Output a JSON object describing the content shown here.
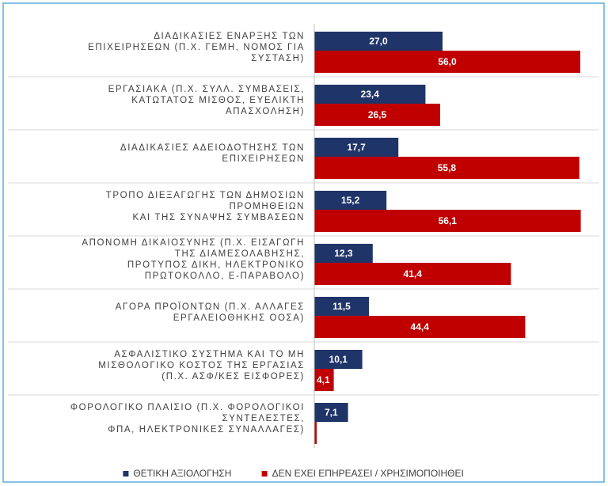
{
  "chart_data": {
    "type": "barh",
    "categories": [
      "ΔΙΑΔΙΚΑΣΙΕΣ ΕΝΑΡΞΗΣ ΤΩΝ\nΕΠΙΧΕΙΡΗΣΕΩΝ (Π.Χ. ΓΕΜΗ, ΝΟΜΟΣ ΓΙΑ\nΣΥΣΤΑΣΗ)",
      "ΕΡΓΑΣΙΑΚΑ (Π.Χ. ΣΥΛΛ. ΣΥΜΒΑΣΕΙΣ,\nΚΑΤΩΤΑΤΟΣ ΜΙΣΘΟΣ, ΕΥΕΛΙΚΤΗ\nΑΠΑΣΧΟΛΗΣΗ)",
      "ΔΙΑΔΙΚΑΣΙΕΣ ΑΔΕΙΟΔΟΤΗΣΗΣ ΤΩΝ\nΕΠΙΧΕΙΡΗΣΕΩΝ",
      "ΤΡΟΠΟ ΔΙΕΞΑΓΩΓΗΣ ΤΩΝ ΔΗΜΟΣΙΩΝ\nΠΡΟΜΗΘΕΙΩΝ\nΚΑΙ ΤΗΣ ΣΥΝΑΨΗΣ ΣΥΜΒΑΣΕΩΝ",
      "ΑΠΟΝΟΜΗ ΔΙΚΑΙΟΣΥΝΗΣ  (Π.Χ. ΕΙΣΑΓΩΓΗ\nΤΗΣ ΔΙΑΜΕΣΟΛΑΒΗΣΗΣ,\nΠΡΟΤΥΠΟΣ ΔΙΚΗ, ΗΛΕΚΤΡΟΝΙΚΟ\nΠΡΩΤΟΚΟΛΛΟ, Ε-ΠΑΡΑΒΟΛΟ)",
      "ΑΓΟΡΑ ΠΡΟΪΟΝΤΩΝ (Π.Χ. ΑΛΛΑΓΕΣ\nΕΡΓΑΛΕΙΟΘΗΚΗΣ ΟΟΣΑ)",
      "ΑΣΦΑΛΙΣΤΙΚΟ ΣΥΣΤΗΜΑ ΚΑΙ ΤΟ ΜΗ\nΜΙΣΘΟΛΟΓΙΚΟ ΚΟΣΤΟΣ ΤΗΣ ΕΡΓΑΣΙΑΣ\n(Π.Χ. ΑΣΦ/ΚΕΣ ΕΙΣΦΟΡΕΣ)",
      "ΦΟΡΟΛΟΓΙΚΟ ΠΛΑΙΣΙΟ (Π.Χ. ΦΟΡΟΛΟΓΙΚΟΙ\nΣΥΝΤΕΛΕΣΤΕΣ,\nΦΠΑ, ΗΛΕΚΤΡΟΝΙΚΕΣ ΣΥΝΑΛΛΑΓΕΣ)"
    ],
    "series": [
      {
        "name": "ΘΕΤΙΚΗ ΑΞΙΟΛΟΓΗΣΗ",
        "color": "#1f3468",
        "values": [
          27.0,
          23.4,
          17.7,
          15.2,
          12.3,
          11.5,
          10.1,
          7.1
        ],
        "value_labels": [
          "27,0",
          "23,4",
          "17,7",
          "15,2",
          "12,3",
          "11,5",
          "10,1",
          "7,1"
        ]
      },
      {
        "name": "ΔΕΝ ΕΧΕΙ ΕΠΗΡΕΑΣΕΙ / ΧΡΗΣΙΜΟΠΟΙΗΘΕΙ",
        "color": "#c00000",
        "values": [
          56.0,
          26.5,
          55.8,
          56.1,
          41.4,
          44.4,
          4.1,
          0.5
        ],
        "value_labels": [
          "56,0",
          "26,5",
          "55,8",
          "56,1",
          "41,4",
          "44,4",
          "4,1",
          null
        ]
      }
    ],
    "xlim": [
      0,
      60
    ],
    "legend": "bottom"
  }
}
